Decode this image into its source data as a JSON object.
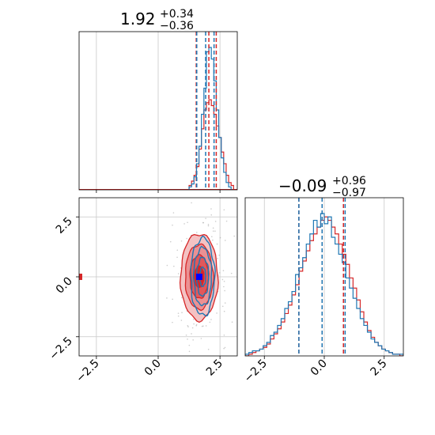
{
  "chart_data": {
    "type": "corner",
    "colors": {
      "blue": "#1f77b4",
      "red": "#d62728",
      "grid": "#c8c8c8",
      "marker": "#0000ff"
    },
    "params": [
      {
        "title_value": "1.92",
        "title_plus": "+0.34",
        "title_minus": "−0.36",
        "median": 1.92,
        "q_low": 1.56,
        "q_high": 2.26,
        "range": [
          -3.2,
          3.2
        ]
      },
      {
        "title_value": "−0.09",
        "title_plus": "+0.96",
        "title_minus": "−0.97",
        "median": -0.09,
        "q_low": -1.06,
        "q_high": 0.87,
        "range": [
          -3.3,
          3.3
        ]
      }
    ],
    "ticks": [
      -2.5,
      0.0,
      2.5
    ],
    "tick_labels": [
      "−2.5",
      "0.0",
      "2.5"
    ],
    "marginal_x": {
      "bin_width": 0.1,
      "blue": {
        "start": 1.25,
        "counts": [
          2,
          4,
          9,
          18,
          30,
          52,
          70,
          95,
          98,
          90,
          75,
          55,
          36,
          22,
          12,
          5,
          2
        ]
      },
      "red": {
        "start": 1.25,
        "counts": [
          3,
          6,
          10,
          16,
          28,
          42,
          55,
          60,
          62,
          58,
          52,
          44,
          36,
          26,
          18,
          10,
          5,
          3
        ]
      },
      "blue_lines": [
        1.56,
        1.92,
        2.26
      ],
      "red_lines": [
        1.54,
        2.05,
        2.35
      ]
    },
    "marginal_y": {
      "bin_width": 0.15,
      "start": -3.3,
      "blue": [
        1,
        2,
        3,
        3,
        4,
        6,
        8,
        12,
        14,
        18,
        22,
        28,
        32,
        38,
        48,
        52,
        58,
        66,
        72,
        80,
        76,
        84,
        78,
        82,
        70,
        66,
        60,
        55,
        46,
        40,
        34,
        28,
        22,
        18,
        14,
        10,
        8,
        6,
        4,
        3,
        2,
        1,
        1,
        1
      ],
      "red": [
        0,
        1,
        2,
        3,
        4,
        5,
        7,
        10,
        13,
        16,
        20,
        25,
        30,
        36,
        42,
        50,
        56,
        62,
        68,
        72,
        76,
        80,
        82,
        80,
        76,
        72,
        66,
        60,
        54,
        46,
        40,
        33,
        26,
        20,
        15,
        11,
        8,
        6,
        4,
        3,
        2,
        1,
        1,
        0
      ],
      "blue_lines": [
        -1.06,
        -0.09,
        0.87
      ],
      "red_lines": [
        -1.06,
        -0.09,
        0.8
      ]
    },
    "joint": {
      "red_center": [
        1.66,
        0.0
      ],
      "blue_center": [
        1.8,
        0.0
      ],
      "red_sigma": [
        0.36,
        0.97
      ],
      "blue_sigma": [
        0.24,
        0.85
      ],
      "levels": [
        0.5,
        1.0,
        1.5,
        2.0
      ],
      "truth_point": [
        1.66,
        0.0
      ],
      "edge_marker": [
        -3.15,
        0.0
      ]
    }
  }
}
